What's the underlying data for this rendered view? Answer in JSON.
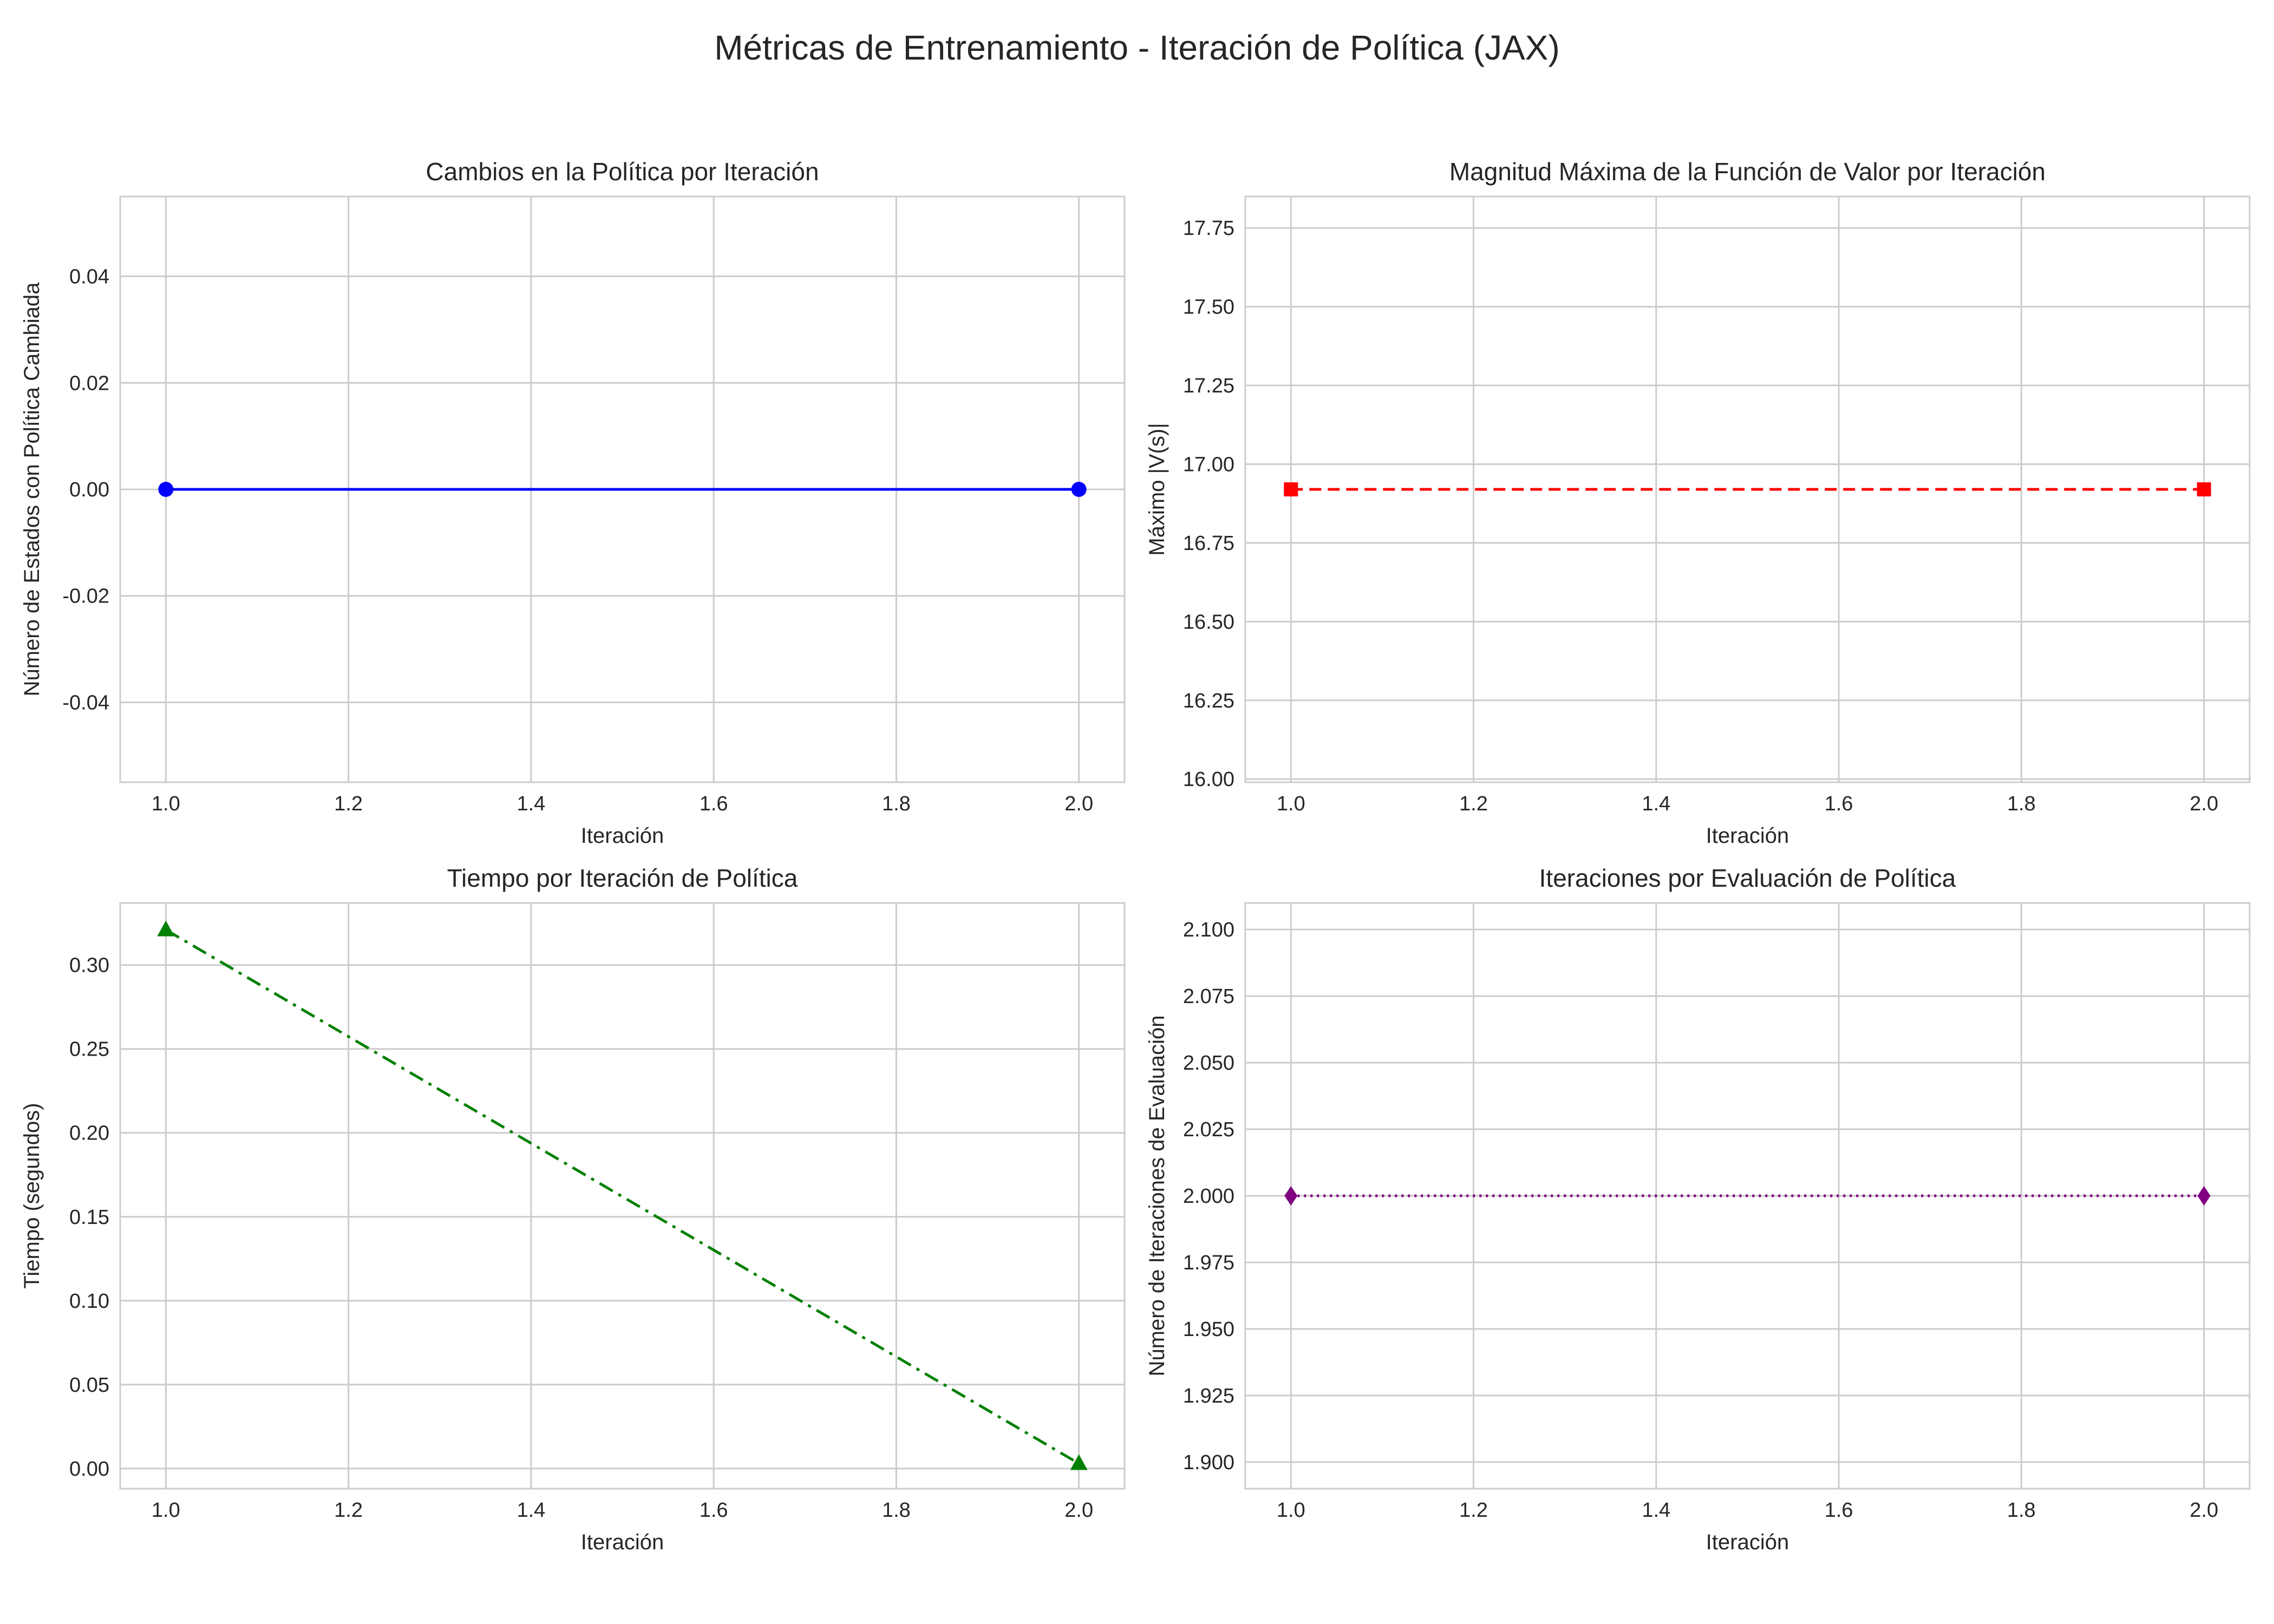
{
  "figure": {
    "title": "Métricas de Entrenamiento - Iteración de Política (JAX)"
  },
  "chart_data": [
    {
      "type": "line",
      "title": "Cambios en la Política por Iteración",
      "xlabel": "Iteración",
      "ylabel": "Número de Estados con Política Cambiada",
      "x": [
        1.0,
        2.0
      ],
      "y": [
        0,
        0
      ],
      "xlim": [
        0.95,
        2.05
      ],
      "ylim": [
        -0.055,
        0.055
      ],
      "xticks": [
        "1.0",
        "1.2",
        "1.4",
        "1.6",
        "1.8",
        "2.0"
      ],
      "yticks": [
        "-0.04",
        "-0.02",
        "0.00",
        "0.02",
        "0.04"
      ],
      "color": "#0000ff",
      "line_style": "solid",
      "marker": "circle",
      "grid": true
    },
    {
      "type": "line",
      "title": "Magnitud Máxima de la Función de Valor por Iteración",
      "xlabel": "Iteración",
      "ylabel": "Máximo |V(s)|",
      "x": [
        1.0,
        2.0
      ],
      "y": [
        16.92,
        16.92
      ],
      "xlim": [
        0.95,
        2.05
      ],
      "ylim": [
        15.99,
        17.85
      ],
      "xticks": [
        "1.0",
        "1.2",
        "1.4",
        "1.6",
        "1.8",
        "2.0"
      ],
      "yticks": [
        "16.00",
        "16.25",
        "16.50",
        "16.75",
        "17.00",
        "17.25",
        "17.50",
        "17.75"
      ],
      "color": "#ff0000",
      "line_style": "dashed",
      "marker": "square",
      "grid": true
    },
    {
      "type": "line",
      "title": "Tiempo por Iteración de Política",
      "xlabel": "Iteración",
      "ylabel": "Tiempo (segundos)",
      "x": [
        1.0,
        2.0
      ],
      "y": [
        0.321,
        0.003
      ],
      "xlim": [
        0.95,
        2.05
      ],
      "ylim": [
        -0.012,
        0.337
      ],
      "xticks": [
        "1.0",
        "1.2",
        "1.4",
        "1.6",
        "1.8",
        "2.0"
      ],
      "yticks": [
        "0.00",
        "0.05",
        "0.10",
        "0.15",
        "0.20",
        "0.25",
        "0.30"
      ],
      "color": "#008000",
      "line_style": "dashdot",
      "marker": "triangle",
      "grid": true
    },
    {
      "type": "line",
      "title": "Iteraciones por Evaluación de Política",
      "xlabel": "Iteración",
      "ylabel": "Número de Iteraciones de Evaluación",
      "x": [
        1.0,
        2.0
      ],
      "y": [
        2.0,
        2.0
      ],
      "xlim": [
        0.95,
        2.05
      ],
      "ylim": [
        1.89,
        2.11
      ],
      "xticks": [
        "1.0",
        "1.2",
        "1.4",
        "1.6",
        "1.8",
        "2.0"
      ],
      "yticks": [
        "1.900",
        "1.925",
        "1.950",
        "1.975",
        "2.000",
        "2.025",
        "2.050",
        "2.075",
        "2.100"
      ],
      "color": "#800080",
      "line_style": "dotted",
      "marker": "diamond",
      "grid": true
    }
  ]
}
